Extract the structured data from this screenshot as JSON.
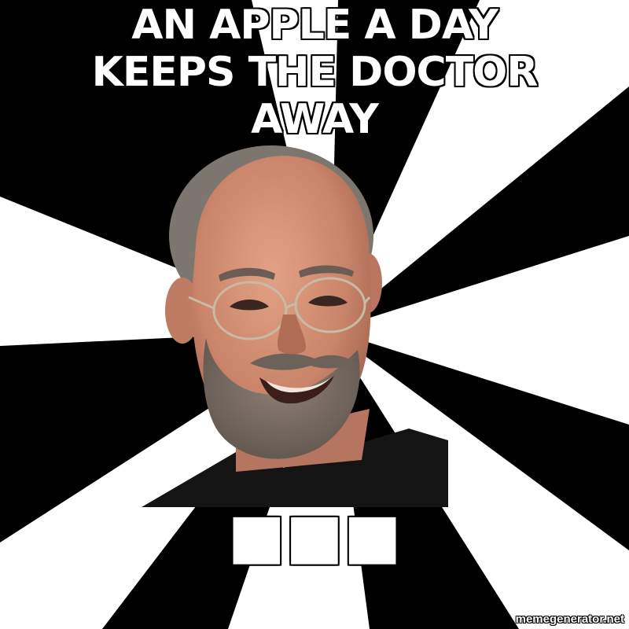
{
  "meme": {
    "top_text": "AN APPLE A DAY KEEPS THE DOCTOR AWAY",
    "bottom_text": "■■■",
    "watermark": "memegenerator.net"
  },
  "colors": {
    "background": "#000000",
    "rays": "#ffffff",
    "caption_text": "#ffffff",
    "caption_outline": "#000000"
  }
}
